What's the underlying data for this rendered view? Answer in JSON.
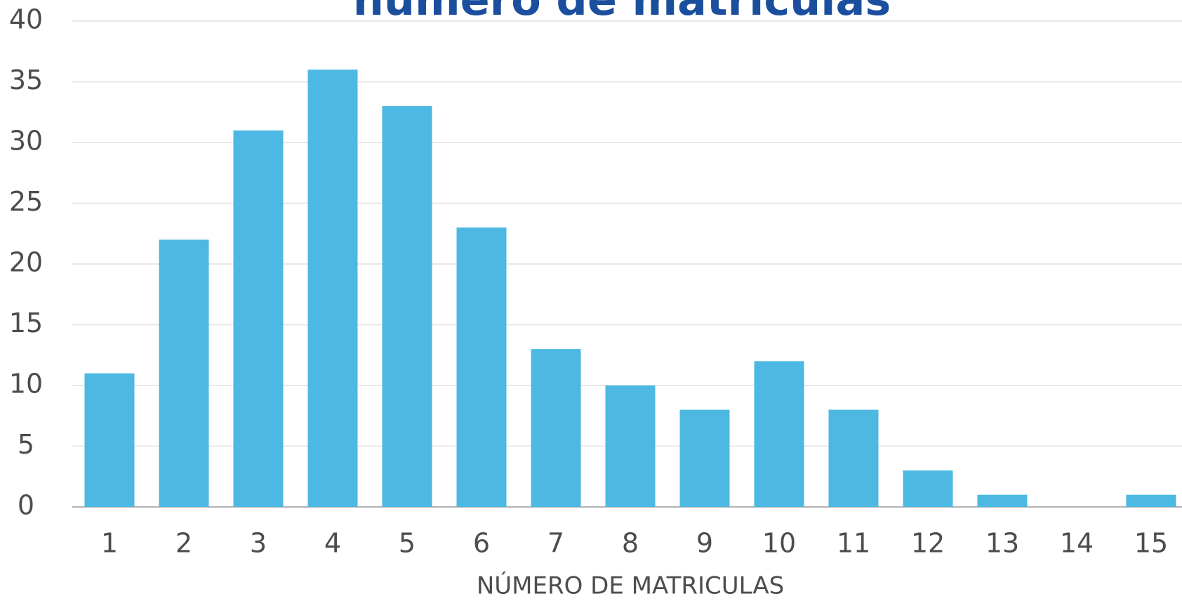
{
  "chart_data": {
    "type": "bar",
    "title": "número de matriculas",
    "x_label": "NÚMERO DE MATRICULAS",
    "categories": [
      "1",
      "2",
      "3",
      "4",
      "5",
      "6",
      "7",
      "8",
      "9",
      "10",
      "11",
      "12",
      "13",
      "14",
      "15"
    ],
    "values": [
      11,
      22,
      31,
      36,
      33,
      23,
      13,
      10,
      8,
      12,
      8,
      3,
      1,
      0,
      1
    ],
    "color": "#4db8e2",
    "ylim": [
      0,
      40
    ],
    "yticks": [
      0,
      5,
      10,
      15,
      20,
      25,
      30,
      35,
      40
    ],
    "grid": true
  }
}
